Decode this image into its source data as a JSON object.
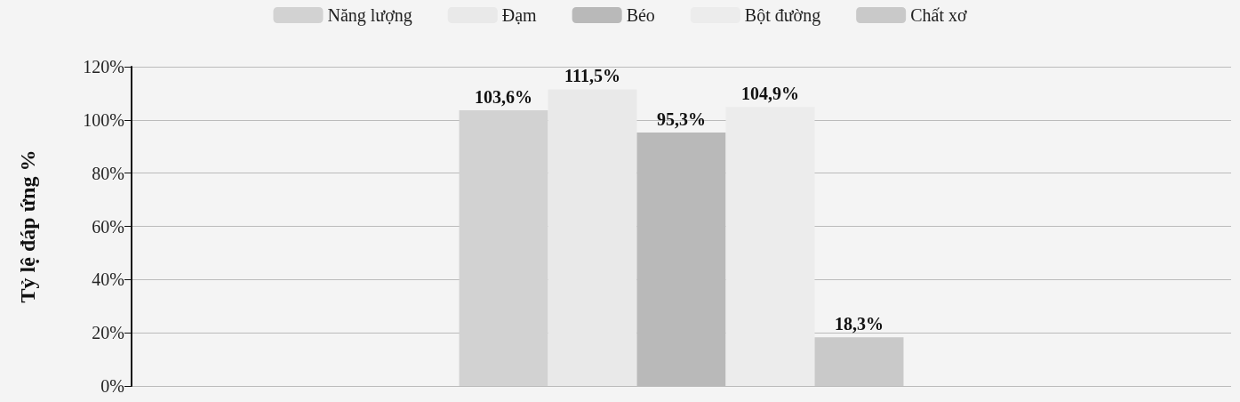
{
  "chart_data": {
    "type": "bar",
    "ylabel": "Tỷ lệ đáp ứng %",
    "categories": [
      null
    ],
    "series": [
      {
        "name": "Năng lượng",
        "color": "#d2d2d2",
        "values": [
          103.6
        ],
        "value_labels": [
          "103,6%"
        ]
      },
      {
        "name": "Đạm",
        "color": "#e9e9e9",
        "values": [
          111.5
        ],
        "value_labels": [
          "111,5%"
        ]
      },
      {
        "name": "Béo",
        "color": "#b9b9b9",
        "values": [
          95.3
        ],
        "value_labels": [
          "95,3%"
        ]
      },
      {
        "name": "Bột đường",
        "color": "#ececec",
        "values": [
          104.9
        ],
        "value_labels": [
          "104,9%"
        ]
      },
      {
        "name": "Chất xơ",
        "color": "#c9c9c9",
        "values": [
          18.3
        ],
        "value_labels": [
          "18,3%"
        ]
      }
    ],
    "ylim": [
      0,
      120
    ],
    "yticks": [
      {
        "value": 0,
        "label": "0%"
      },
      {
        "value": 20,
        "label": "20%"
      },
      {
        "value": 40,
        "label": "40%"
      },
      {
        "value": 60,
        "label": "60%"
      },
      {
        "value": 80,
        "label": "80%"
      },
      {
        "value": 100,
        "label": "100%"
      },
      {
        "value": 120,
        "label": "120%"
      }
    ],
    "grid": "y",
    "legend": "top"
  }
}
